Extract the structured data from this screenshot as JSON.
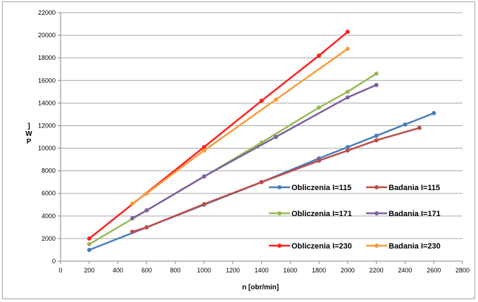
{
  "chart_data": {
    "type": "line",
    "title": "",
    "xlabel": "n [obr/min]",
    "ylabel_chars": [
      "]",
      "W",
      "P"
    ],
    "xlim": [
      0,
      2800
    ],
    "ylim": [
      0,
      22000
    ],
    "xticks": [
      0,
      200,
      400,
      600,
      800,
      1000,
      1200,
      1400,
      1600,
      1800,
      2000,
      2200,
      2400,
      2600,
      2800
    ],
    "yticks": [
      0,
      2000,
      4000,
      6000,
      8000,
      10000,
      12000,
      14000,
      16000,
      18000,
      20000,
      22000
    ],
    "grid": true,
    "legend_position": "bottom-right-inside",
    "series": [
      {
        "name": "Obliczenia I=115",
        "color": "#4a7ebb",
        "x": [
          200,
          600,
          1000,
          1400,
          1800,
          2000,
          2200,
          2400,
          2600
        ],
        "y": [
          1000,
          3000,
          5000,
          7000,
          9100,
          10100,
          11100,
          12100,
          13100
        ]
      },
      {
        "name": "Badania I=115",
        "color": "#be4b48",
        "x": [
          500,
          600,
          1000,
          1400,
          1800,
          2000,
          2200,
          2500
        ],
        "y": [
          2600,
          3000,
          5050,
          7000,
          8900,
          9800,
          10700,
          11800
        ]
      },
      {
        "name": "Obliczenia I=171",
        "color": "#98b954",
        "x": [
          200,
          600,
          1000,
          1400,
          1800,
          2000,
          2200
        ],
        "y": [
          1500,
          4500,
          7500,
          10500,
          13600,
          15000,
          16600
        ]
      },
      {
        "name": "Badania I=171",
        "color": "#7d60a0",
        "x": [
          500,
          600,
          1000,
          1500,
          2000,
          2200
        ],
        "y": [
          3800,
          4500,
          7500,
          11000,
          14500,
          15600
        ]
      },
      {
        "name": "Obliczenia I=230",
        "color": "#ff2020",
        "x": [
          200,
          1000,
          1400,
          1800,
          2000
        ],
        "y": [
          2000,
          10100,
          14200,
          18200,
          20300
        ]
      },
      {
        "name": "Badania I=230",
        "color": "#f59d39",
        "x": [
          500,
          600,
          1000,
          1500,
          2000
        ],
        "y": [
          5100,
          6000,
          9800,
          14300,
          18800
        ]
      }
    ]
  }
}
